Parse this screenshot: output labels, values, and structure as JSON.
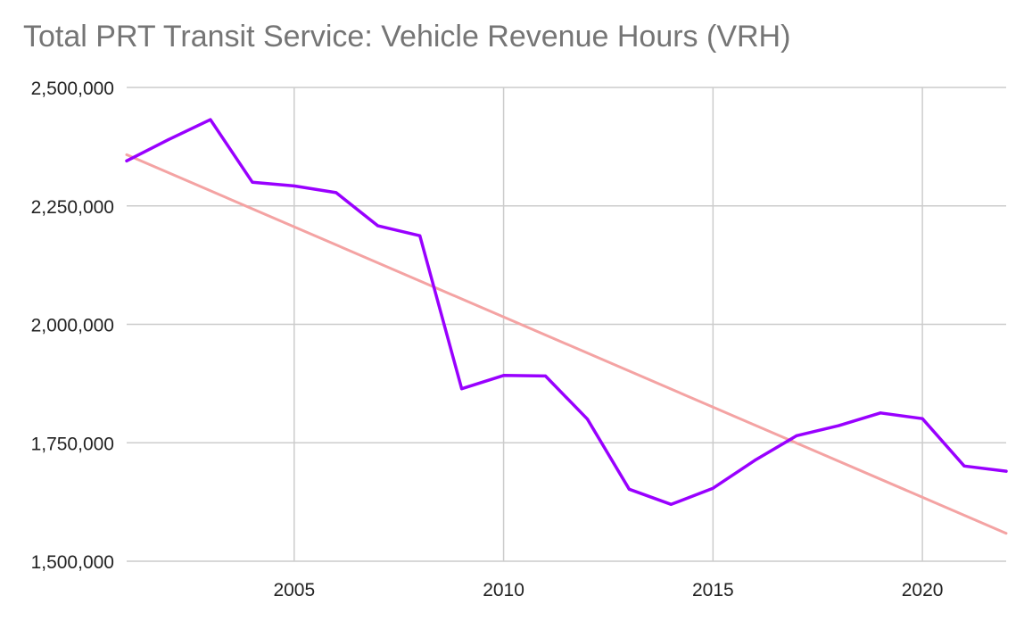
{
  "chart_data": {
    "type": "line",
    "title": "Total PRT Transit Service: Vehicle Revenue Hours (VRH)",
    "xlabel": "",
    "ylabel": "",
    "xlim": [
      2001,
      2022
    ],
    "ylim": [
      1500000,
      2500000
    ],
    "x_ticks": [
      2005,
      2010,
      2015,
      2020
    ],
    "x_tick_labels": [
      "2005",
      "2010",
      "2015",
      "2020"
    ],
    "y_ticks": [
      1500000,
      1750000,
      2000000,
      2250000,
      2500000
    ],
    "y_tick_labels": [
      "1,500,000",
      "1,750,000",
      "2,000,000",
      "2,250,000",
      "2,500,000"
    ],
    "grid": true,
    "legend": "none",
    "series": [
      {
        "color": "#9900ff",
        "x": [
          2001,
          2002,
          2003,
          2004,
          2005,
          2006,
          2007,
          2008,
          2009,
          2010,
          2011,
          2012,
          2013,
          2014,
          2015,
          2016,
          2017,
          2018,
          2019,
          2020,
          2021,
          2022
        ],
        "values": [
          2345000,
          2390000,
          2432000,
          2300000,
          2292000,
          2278000,
          2208000,
          2187000,
          1864000,
          1892000,
          1891000,
          1800000,
          1652000,
          1620000,
          1654000,
          1713000,
          1765000,
          1786000,
          1813000,
          1801000,
          1701000,
          1690000
        ]
      },
      {
        "color": "#f4a3a3",
        "role": "trendline",
        "x": [
          2001,
          2022
        ],
        "values": [
          2358000,
          1559000
        ]
      }
    ]
  }
}
